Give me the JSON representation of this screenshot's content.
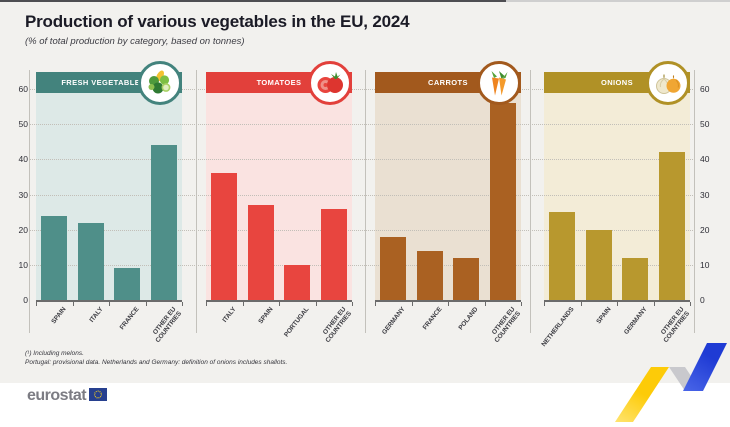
{
  "header": {
    "title": "Production of various vegetables in the EU, 2024",
    "subtitle": "(% of total production by category, based on tonnes)"
  },
  "chart_data": {
    "type": "bar",
    "title": "Production of various vegetables in the EU, 2024",
    "subtitle": "(% of total production by category, based on tonnes)",
    "ylabel": "% of total production",
    "ylim": [
      0,
      60
    ],
    "yticks": [
      0,
      10,
      20,
      30,
      40,
      50,
      60
    ],
    "grid": true,
    "panels": [
      {
        "label": "FRESH VEGETABLES (¹)",
        "icon": "fresh-vegetables-icon",
        "header_color": "#43837d",
        "color": "#4f8f89",
        "tint": "#dde9e7",
        "categories": [
          "SPAIN",
          "ITALY",
          "FRANCE",
          "OTHER EU\nCOUNTRIES"
        ],
        "values": [
          24,
          22,
          9,
          44
        ]
      },
      {
        "label": "TOMATOES",
        "icon": "tomatoes-icon",
        "header_color": "#e2403b",
        "color": "#e8453f",
        "tint": "#fae3e1",
        "categories": [
          "ITALY",
          "SPAIN",
          "PORTUGAL",
          "OTHER EU\nCOUNTRIES"
        ],
        "values": [
          36,
          27,
          10,
          26
        ]
      },
      {
        "label": "CARROTS",
        "icon": "carrots-icon",
        "header_color": "#a2591d",
        "color": "#aa6122",
        "tint": "#eae0d2",
        "categories": [
          "GERMANY",
          "FRANCE",
          "POLAND",
          "OTHER EU\nCOUNTRIES"
        ],
        "values": [
          18,
          14,
          12,
          56
        ]
      },
      {
        "label": "ONIONS",
        "icon": "onions-icon",
        "header_color": "#b09126",
        "color": "#b8982e",
        "tint": "#f3ecd7",
        "categories": [
          "NETHERLANDS",
          "SPAIN",
          "GERMANY",
          "OTHER EU\nCOUNTRIES"
        ],
        "values": [
          25,
          20,
          12,
          42
        ]
      }
    ]
  },
  "footnotes": {
    "line1": "(¹) Including melons.",
    "line2": "Portugal: provisional data. Netherlands and Germany: definition of onions includes shallots."
  },
  "logo": {
    "text": "eurostat"
  }
}
